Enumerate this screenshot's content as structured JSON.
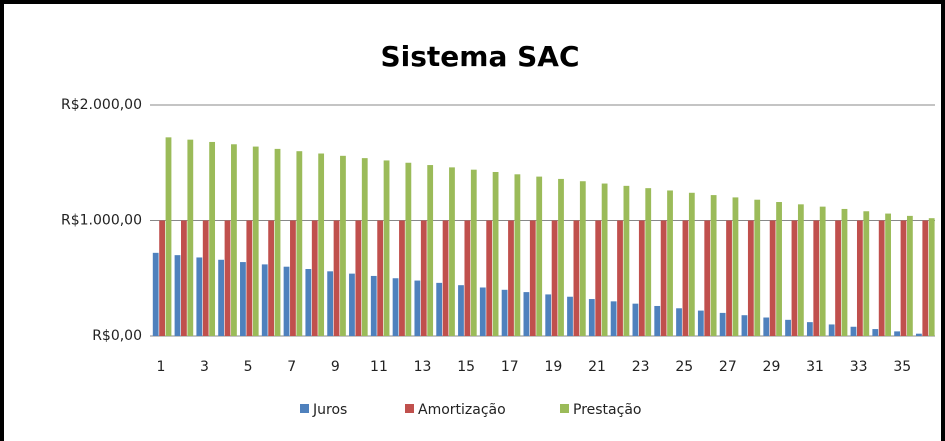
{
  "chart_data": {
    "type": "bar",
    "title": "Sistema SAC",
    "categories": [
      1,
      null,
      3,
      null,
      5,
      null,
      7,
      null,
      9,
      null,
      11,
      null,
      13,
      null,
      15,
      null,
      17,
      null,
      19,
      null,
      21,
      null,
      23,
      null,
      25,
      null,
      27,
      null,
      29,
      null,
      31,
      null,
      33,
      null,
      35,
      null
    ],
    "series": [
      {
        "name": "Juros",
        "color": "#4f81bd",
        "values": [
          720,
          700,
          680,
          660,
          640,
          620,
          600,
          580,
          560,
          540,
          520,
          500,
          480,
          460,
          440,
          420,
          400,
          380,
          360,
          340,
          320,
          300,
          280,
          260,
          240,
          220,
          200,
          180,
          160,
          140,
          120,
          100,
          80,
          60,
          40,
          20
        ]
      },
      {
        "name": "Amortização",
        "color": "#c0504d",
        "values": [
          1000,
          1000,
          1000,
          1000,
          1000,
          1000,
          1000,
          1000,
          1000,
          1000,
          1000,
          1000,
          1000,
          1000,
          1000,
          1000,
          1000,
          1000,
          1000,
          1000,
          1000,
          1000,
          1000,
          1000,
          1000,
          1000,
          1000,
          1000,
          1000,
          1000,
          1000,
          1000,
          1000,
          1000,
          1000,
          1000
        ]
      },
      {
        "name": "Prestação",
        "color": "#9bbb59",
        "values": [
          1720,
          1700,
          1680,
          1660,
          1640,
          1620,
          1600,
          1580,
          1560,
          1540,
          1520,
          1500,
          1480,
          1460,
          1440,
          1420,
          1400,
          1380,
          1360,
          1340,
          1320,
          1300,
          1280,
          1260,
          1240,
          1220,
          1200,
          1180,
          1160,
          1140,
          1120,
          1100,
          1080,
          1060,
          1040,
          1020
        ]
      }
    ],
    "ylim": [
      0,
      2000
    ],
    "yticks": [
      {
        "value": 0,
        "label": "R$0,00"
      },
      {
        "value": 1000,
        "label": "R$1.000,00"
      },
      {
        "value": 2000,
        "label": "R$2.000,00"
      }
    ],
    "grid": true,
    "legend": "bottom"
  }
}
